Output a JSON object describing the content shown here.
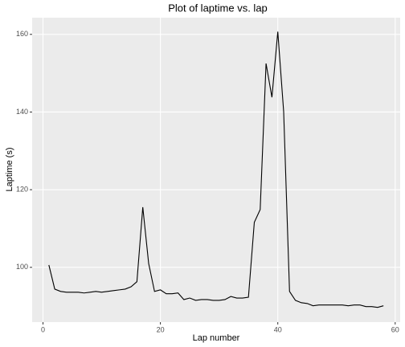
{
  "chart_data": {
    "type": "line",
    "title": "Plot of laptime vs. lap",
    "x_label": "Lap number",
    "y_label": "Laptime (s)",
    "x": [
      1,
      2,
      3,
      4,
      5,
      6,
      7,
      8,
      9,
      10,
      11,
      12,
      13,
      14,
      15,
      16,
      17,
      18,
      19,
      20,
      21,
      22,
      23,
      24,
      25,
      26,
      27,
      28,
      29,
      30,
      31,
      32,
      33,
      34,
      35,
      36,
      37,
      38,
      39,
      40,
      41,
      42,
      43,
      44,
      45,
      46,
      47,
      48,
      49,
      50,
      51,
      52,
      53,
      54,
      55,
      56,
      57,
      58
    ],
    "series": [
      {
        "name": "laptime",
        "color": "#000000",
        "values": [
          100.6,
          94.4,
          93.8,
          93.6,
          93.6,
          93.6,
          93.4,
          93.6,
          93.8,
          93.6,
          93.8,
          94.0,
          94.2,
          94.4,
          95.0,
          96.3,
          115.5,
          101.0,
          93.8,
          94.2,
          93.2,
          93.2,
          93.4,
          91.7,
          92.1,
          91.5,
          91.7,
          91.7,
          91.5,
          91.5,
          91.7,
          92.5,
          92.1,
          92.1,
          92.3,
          111.6,
          114.9,
          152.5,
          143.8,
          160.7,
          140.1,
          93.8,
          91.5,
          90.9,
          90.7,
          90.1,
          90.3,
          90.3,
          90.3,
          90.3,
          90.3,
          90.1,
          90.3,
          90.3,
          89.9,
          89.9,
          89.7,
          90.1
        ]
      }
    ],
    "xlim": [
      -1.85,
      60.85
    ],
    "xticks": [
      0,
      20,
      40,
      60
    ],
    "ylim": [
      85.9,
      164.3
    ],
    "yticks": [
      100,
      120,
      140,
      160
    ],
    "grid": true
  }
}
